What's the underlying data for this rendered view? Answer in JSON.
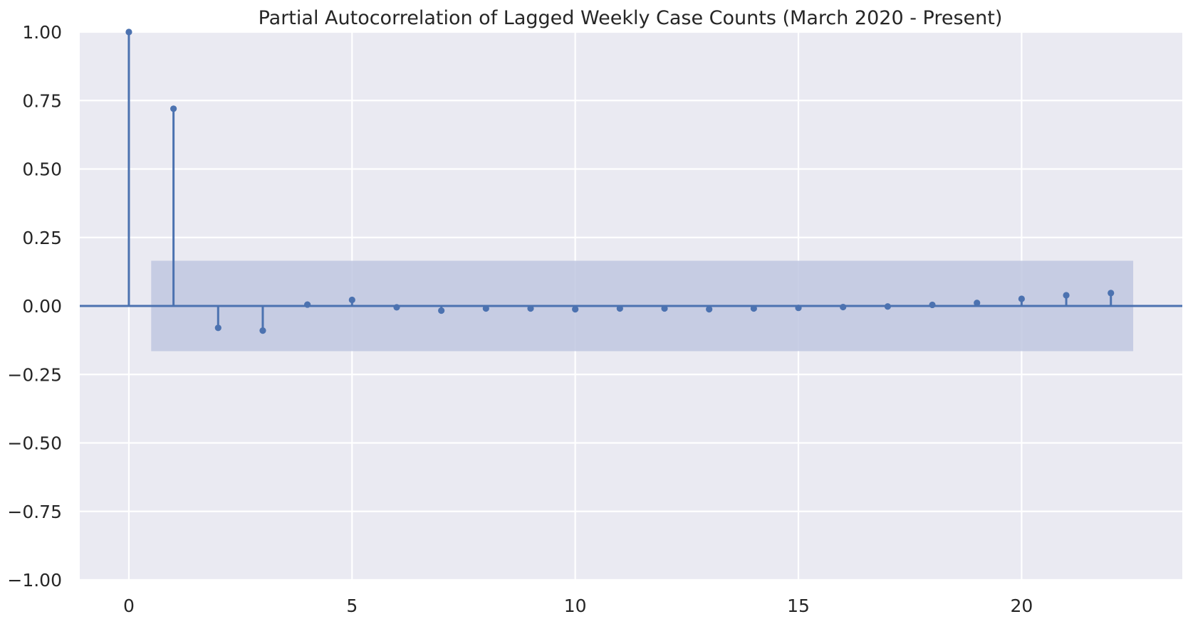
{
  "chart_data": {
    "type": "stem",
    "title": "Partial Autocorrelation of Lagged Weekly Case Counts (March 2020 - Present)",
    "xlabel": "",
    "ylabel": "",
    "xlim": [
      -1.1,
      23.6
    ],
    "ylim": [
      -1.0,
      1.0
    ],
    "x_ticks": [
      0,
      5,
      10,
      15,
      20
    ],
    "x_tick_labels": [
      "0",
      "5",
      "10",
      "15",
      "20"
    ],
    "y_ticks": [
      1.0,
      0.75,
      0.5,
      0.25,
      0.0,
      -0.25,
      -0.5,
      -0.75,
      -1.0
    ],
    "y_tick_labels": [
      "1.00",
      "0.75",
      "0.50",
      "0.25",
      "0.00",
      "−0.25",
      "−0.50",
      "−0.75",
      "−1.00"
    ],
    "grid": true,
    "lags": [
      0,
      1,
      2,
      3,
      4,
      5,
      6,
      7,
      8,
      9,
      10,
      11,
      12,
      13,
      14,
      15,
      16,
      17,
      18,
      19,
      20,
      21,
      22
    ],
    "values": [
      1.0,
      0.72,
      -0.08,
      -0.09,
      0.005,
      0.022,
      -0.005,
      -0.017,
      -0.009,
      -0.009,
      -0.012,
      -0.009,
      -0.009,
      -0.012,
      -0.009,
      -0.007,
      -0.004,
      -0.002,
      0.004,
      0.011,
      0.026,
      0.039,
      0.047
    ],
    "confidence_band": {
      "x_start": 0.5,
      "x_end": 22.5,
      "lower": -0.165,
      "upper": 0.165
    },
    "colors": {
      "stem": "#4c72b0",
      "band": "#bfc7e0",
      "plot_background": "#eaeaf2",
      "grid": "#ffffff"
    }
  }
}
